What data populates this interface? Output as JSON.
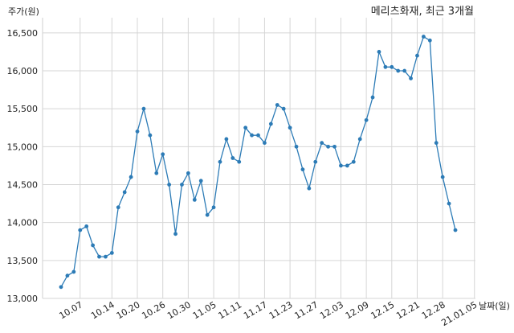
{
  "chart_data": {
    "type": "line",
    "title": "메리츠화재, 최근 3개월",
    "ylabel": "주가(원)",
    "xlabel": "날짜(일)",
    "ylim": [
      13000,
      16700
    ],
    "yticks": [
      13000,
      13500,
      14000,
      14500,
      15000,
      15500,
      16000,
      16500
    ],
    "ytick_labels": [
      "13,000",
      "13,500",
      "14,000",
      "14,500",
      "15,000",
      "15,500",
      "16,000",
      "16,500"
    ],
    "xtick_labels": [
      "10.07",
      "10.14",
      "10.20",
      "10.26",
      "10.30",
      "11.05",
      "11.11",
      "11.17",
      "11.23",
      "11.27",
      "12.03",
      "12.09",
      "12.15",
      "12.21",
      "12.28",
      "21.01.05"
    ],
    "xtick_index": [
      3,
      8,
      12,
      16,
      20,
      24,
      28,
      32,
      36,
      40,
      44,
      48,
      52,
      56,
      60,
      65
    ],
    "grid": true,
    "line_color": "#2c7bb6",
    "series": [
      {
        "values": [
          13150,
          13300,
          13350,
          13900,
          13950,
          13700,
          13550,
          13550,
          13600,
          14200,
          14400,
          14600,
          15200,
          15500,
          15150,
          14650,
          14900,
          14500,
          13850,
          14500,
          14650,
          14300,
          14550,
          14100,
          14200,
          14800,
          15100,
          14850,
          14800,
          15250,
          15150,
          15150,
          15050,
          15300,
          15550,
          15500,
          15250,
          15000,
          14700,
          14450,
          14800,
          15050,
          15000,
          15000,
          14750,
          14750,
          14800,
          15100,
          15350,
          15650,
          16250,
          16050,
          16050,
          16000,
          16000,
          15900,
          16200,
          16450,
          16400,
          15050,
          14600,
          14250,
          13900
        ]
      }
    ]
  }
}
